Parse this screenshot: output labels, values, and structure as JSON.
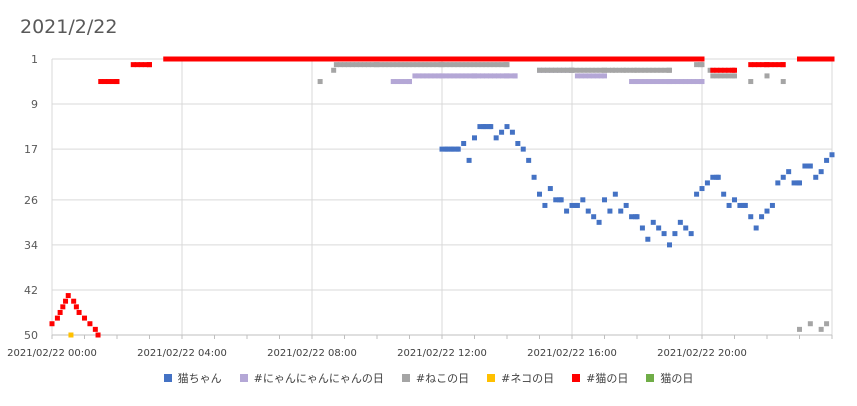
{
  "chart_data": {
    "type": "scatter",
    "title": "2021/2/22",
    "xlabel": "",
    "ylabel": "",
    "y_reversed": true,
    "ylim": [
      1,
      50
    ],
    "y_ticks": [
      "1",
      "9",
      "17",
      "26",
      "34",
      "42",
      "50"
    ],
    "y_tick_values": [
      1,
      9,
      17,
      26,
      34,
      42,
      50
    ],
    "xlim": [
      "2021/02/22 00:00",
      "2021/02/23 00:00"
    ],
    "x_ticks": [
      "2021/02/22 00:00",
      "2021/02/22 04:00",
      "2021/02/22 08:00",
      "2021/02/22 12:00",
      "2021/02/22 16:00",
      "2021/02/22 20:00"
    ],
    "grid": true,
    "legend_position": "bottom",
    "series": [
      {
        "name": "猫ちゃん",
        "color": "#4472C4",
        "points": [
          [
            "12:00",
            17
          ],
          [
            "12:10",
            17
          ],
          [
            "12:20",
            17
          ],
          [
            "12:30",
            17
          ],
          [
            "12:40",
            16
          ],
          [
            "12:50",
            19
          ],
          [
            "13:00",
            15
          ],
          [
            "13:10",
            13
          ],
          [
            "13:20",
            13
          ],
          [
            "13:30",
            13
          ],
          [
            "13:40",
            15
          ],
          [
            "13:50",
            14
          ],
          [
            "14:00",
            13
          ],
          [
            "14:10",
            14
          ],
          [
            "14:20",
            16
          ],
          [
            "14:30",
            17
          ],
          [
            "14:40",
            19
          ],
          [
            "14:50",
            22
          ],
          [
            "15:00",
            25
          ],
          [
            "15:10",
            27
          ],
          [
            "15:20",
            24
          ],
          [
            "15:30",
            26
          ],
          [
            "15:40",
            26
          ],
          [
            "15:50",
            28
          ],
          [
            "16:00",
            27
          ],
          [
            "16:10",
            27
          ],
          [
            "16:20",
            26
          ],
          [
            "16:30",
            28
          ],
          [
            "16:40",
            29
          ],
          [
            "16:50",
            30
          ],
          [
            "17:00",
            26
          ],
          [
            "17:10",
            28
          ],
          [
            "17:20",
            25
          ],
          [
            "17:30",
            28
          ],
          [
            "17:40",
            27
          ],
          [
            "17:50",
            29
          ],
          [
            "18:00",
            29
          ],
          [
            "18:10",
            31
          ],
          [
            "18:20",
            33
          ],
          [
            "18:30",
            30
          ],
          [
            "18:40",
            31
          ],
          [
            "18:50",
            32
          ],
          [
            "19:00",
            34
          ],
          [
            "19:10",
            32
          ],
          [
            "19:20",
            30
          ],
          [
            "19:30",
            31
          ],
          [
            "19:40",
            32
          ],
          [
            "19:50",
            25
          ],
          [
            "20:00",
            24
          ],
          [
            "20:10",
            23
          ],
          [
            "20:20",
            22
          ],
          [
            "20:30",
            22
          ],
          [
            "20:40",
            25
          ],
          [
            "20:50",
            27
          ],
          [
            "21:00",
            26
          ],
          [
            "21:10",
            27
          ],
          [
            "21:20",
            27
          ],
          [
            "21:30",
            29
          ],
          [
            "21:40",
            31
          ],
          [
            "21:50",
            29
          ],
          [
            "22:00",
            28
          ],
          [
            "22:10",
            27
          ],
          [
            "22:20",
            23
          ],
          [
            "22:30",
            22
          ],
          [
            "22:40",
            21
          ],
          [
            "22:50",
            23
          ],
          [
            "23:00",
            23
          ],
          [
            "23:10",
            20
          ],
          [
            "23:20",
            20
          ],
          [
            "23:30",
            22
          ],
          [
            "23:40",
            21
          ],
          [
            "23:50",
            19
          ],
          [
            "24:00",
            18
          ]
        ]
      },
      {
        "name": "#にゃんにゃんにゃんの日",
        "color": "#B4A7D6",
        "points": [
          [
            "10:30",
            5
          ],
          [
            "11:00",
            5
          ],
          [
            "11:10",
            4
          ],
          [
            "12:00",
            4
          ],
          [
            "13:00",
            4
          ],
          [
            "14:00",
            4
          ],
          [
            "14:15",
            4
          ],
          [
            "15:00",
            3
          ],
          [
            "16:00",
            3
          ],
          [
            "16:10",
            4
          ],
          [
            "17:00",
            4
          ],
          [
            "17:50",
            5
          ],
          [
            "18:00",
            5
          ],
          [
            "19:00",
            5
          ],
          [
            "20:00",
            5
          ]
        ]
      },
      {
        "name": "#ねこの日",
        "color": "#A5A5A5",
        "points": [
          [
            "08:15",
            5
          ],
          [
            "08:40",
            3
          ],
          [
            "08:45",
            2
          ],
          [
            "10:00",
            2
          ],
          [
            "12:00",
            2
          ],
          [
            "14:00",
            2
          ],
          [
            "15:00",
            3
          ],
          [
            "16:00",
            3
          ],
          [
            "17:00",
            3
          ],
          [
            "17:20",
            3
          ],
          [
            "17:40",
            3
          ],
          [
            "18:00",
            3
          ],
          [
            "19:00",
            3
          ],
          [
            "19:50",
            2
          ],
          [
            "20:00",
            2
          ],
          [
            "20:15",
            3
          ],
          [
            "20:20",
            4
          ],
          [
            "21:00",
            4
          ],
          [
            "21:30",
            5
          ],
          [
            "22:00",
            4
          ],
          [
            "22:30",
            5
          ],
          [
            "23:00",
            49
          ],
          [
            "23:20",
            48
          ],
          [
            "23:40",
            49
          ],
          [
            "23:50",
            48
          ]
        ]
      },
      {
        "name": "#ネコの日",
        "color": "#FFC000",
        "points": [
          [
            "00:35",
            50
          ]
        ]
      },
      {
        "name": "#猫の日",
        "color": "#FF0000",
        "points": [
          [
            "00:00",
            48
          ],
          [
            "00:10",
            47
          ],
          [
            "00:15",
            46
          ],
          [
            "00:20",
            45
          ],
          [
            "00:25",
            44
          ],
          [
            "00:30",
            43
          ],
          [
            "00:40",
            44
          ],
          [
            "00:45",
            45
          ],
          [
            "00:50",
            46
          ],
          [
            "01:00",
            47
          ],
          [
            "01:10",
            48
          ],
          [
            "01:20",
            49
          ],
          [
            "01:25",
            50
          ],
          [
            "01:30",
            5
          ],
          [
            "02:00",
            5
          ],
          [
            "02:30",
            2
          ],
          [
            "03:00",
            2
          ],
          [
            "03:30",
            1
          ],
          [
            "08:00",
            1
          ],
          [
            "12:00",
            1
          ],
          [
            "16:00",
            1
          ],
          [
            "20:00",
            1
          ],
          [
            "20:20",
            3
          ],
          [
            "21:00",
            3
          ],
          [
            "21:30",
            2
          ],
          [
            "22:00",
            2
          ],
          [
            "22:30",
            2
          ],
          [
            "23:00",
            1
          ],
          [
            "24:00",
            1
          ]
        ]
      },
      {
        "name": "猫の日",
        "color": "#70AD47",
        "points": []
      }
    ]
  }
}
